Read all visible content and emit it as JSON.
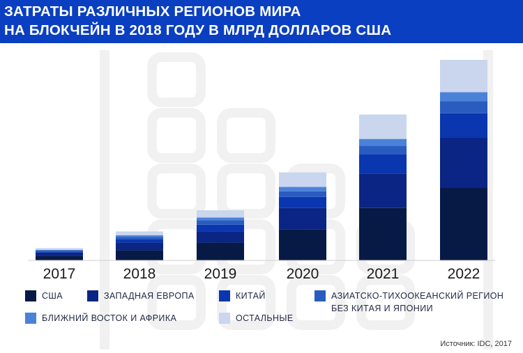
{
  "title": {
    "line1": "ЗАТРАТЫ РАЗЛИЧНЫХ РЕГИОНОВ МИРА",
    "line2": "НА БЛОКЧЕЙН В 2018 ГОДУ В МЛРД ДОЛЛАРОВ США"
  },
  "colors": {
    "title_bar": "#0a3fc2",
    "usa": "#071a45",
    "western_europe": "#0b2585",
    "china": "#0a36b0",
    "apac": "#2a5cc0",
    "mea": "#4a82d8",
    "other": "#c9d6ee"
  },
  "legend": [
    {
      "label": "США",
      "color": "#071a45"
    },
    {
      "label": "ЗАПАДНАЯ ЕВРОПА",
      "color": "#0b2585"
    },
    {
      "label": "КИТАЙ",
      "color": "#0a36b0"
    },
    {
      "label": "АЗИАТСКО-ТИХООКЕАНСКИЙ РЕГИОН\nБЕЗ КИТАЯ И ЯПОНИИ",
      "color": "#2a5cc0"
    },
    {
      "label": "БЛИЖНИЙ ВОСТОК И АФРИКА",
      "color": "#4a82d8"
    },
    {
      "label": "ОСТАЛЬНЫЕ",
      "color": "#c9d6ee"
    }
  ],
  "source": "Источник: IDC, 2017",
  "chart_data": {
    "type": "bar",
    "stacked": true,
    "categories": [
      "2017",
      "2018",
      "2019",
      "2020",
      "2021",
      "2022"
    ],
    "series": [
      {
        "name": "США",
        "color": "#071a45",
        "values": [
          0.4,
          0.9,
          1.6,
          2.8,
          4.7,
          6.5
        ]
      },
      {
        "name": "ЗАПАДНАЯ ЕВРОПА",
        "color": "#0b2585",
        "values": [
          0.3,
          0.7,
          1.0,
          1.9,
          3.1,
          4.5
        ]
      },
      {
        "name": "КИТАЙ",
        "color": "#0a36b0",
        "values": [
          0.1,
          0.3,
          0.6,
          1.0,
          1.7,
          2.2
        ]
      },
      {
        "name": "АЗИАТСКО-ТИХООКЕАНСКИЙ РЕГИОН БЕЗ КИТАЯ И ЯПОНИИ",
        "color": "#2a5cc0",
        "values": [
          0.1,
          0.2,
          0.4,
          0.5,
          0.8,
          1.1
        ]
      },
      {
        "name": "БЛИЖНИЙ ВОСТОК И АФРИКА",
        "color": "#4a82d8",
        "values": [
          0.05,
          0.15,
          0.25,
          0.4,
          0.6,
          0.8
        ]
      },
      {
        "name": "ОСТАЛЬНЫЕ",
        "color": "#c9d6ee",
        "values": [
          0.15,
          0.35,
          0.65,
          1.3,
          2.2,
          2.9
        ]
      }
    ],
    "xlabel": "",
    "ylabel": "",
    "ylim": [
      0,
      18
    ],
    "grid": false,
    "legend_position": "bottom"
  }
}
